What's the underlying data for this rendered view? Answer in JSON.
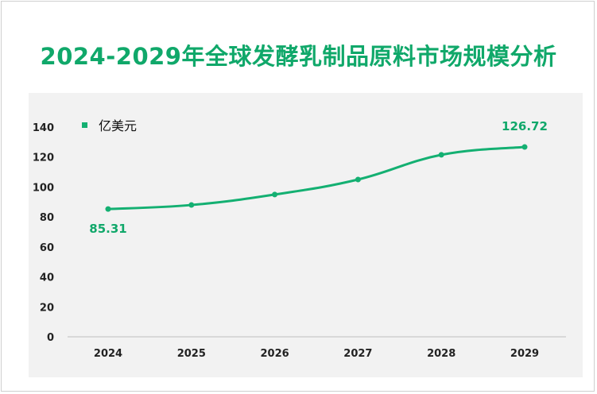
{
  "title": "2024-2029年全球发酵乳制品原料市场规模分析",
  "colors": {
    "line": "#14b072",
    "title": "#10a86a",
    "plot_bg": "#f2f2f2"
  },
  "chart_data": {
    "type": "line",
    "title": "2024-2029年全球发酵乳制品原料市场规模分析",
    "categories": [
      "2024",
      "2025",
      "2026",
      "2027",
      "2028",
      "2029"
    ],
    "series": [
      {
        "name": "亿美元",
        "values": [
          85.31,
          88.0,
          95.0,
          105.0,
          121.5,
          126.72
        ]
      }
    ],
    "data_labels": {
      "first": "85.31",
      "last": "126.72"
    },
    "ylim": [
      0,
      140
    ],
    "yticks": [
      "0",
      "20",
      "40",
      "60",
      "80",
      "100",
      "120",
      "140"
    ],
    "xlabel": "",
    "ylabel": "",
    "grid": false,
    "legend": "top-left",
    "smooth": true
  }
}
